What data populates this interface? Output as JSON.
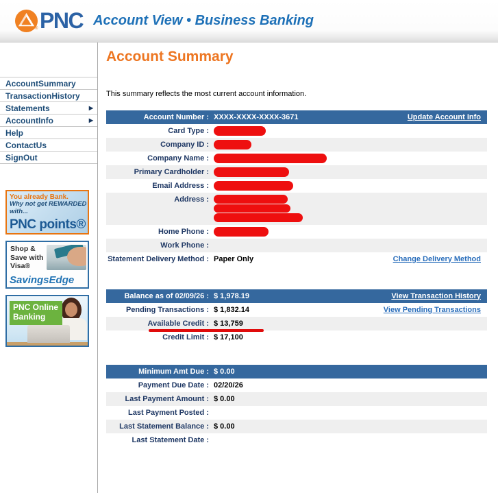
{
  "header": {
    "brand": "PNC",
    "brand_reg": "®",
    "app_title": "Account View • Business Banking"
  },
  "sidebar": {
    "nav": [
      {
        "label": "AccountSummary",
        "arrow": false
      },
      {
        "label": "TransactionHistory",
        "arrow": false
      },
      {
        "label": "Statements",
        "arrow": true
      },
      {
        "label": "AccountInfo",
        "arrow": true
      },
      {
        "label": "Help",
        "arrow": false
      },
      {
        "label": "ContactUs",
        "arrow": false
      },
      {
        "label": "SignOut",
        "arrow": false
      }
    ],
    "promos": [
      {
        "line1": "You already Bank.",
        "line2": "Why not get REWARDED",
        "line3": "with...",
        "title": "PNC points®"
      },
      {
        "line1": "Shop &",
        "line2": "Save with",
        "line3": "Visa®",
        "title": "SavingsEdge"
      },
      {
        "line1": "PNC Online",
        "line2": "Banking"
      }
    ]
  },
  "main": {
    "title": "Account Summary",
    "intro": "This summary reflects the most current account information.",
    "account_table": {
      "header_label": "Account Number :",
      "header_value": "XXXX-XXXX-XXXX-3671",
      "header_link": "Update Account Info",
      "rows": [
        {
          "label": "Card Type :",
          "redactions": [
            76
          ]
        },
        {
          "label": "Company ID :",
          "redactions": [
            55
          ]
        },
        {
          "label": "Company Name :",
          "redactions": [
            165
          ]
        },
        {
          "label": "Primary Cardholder :",
          "redactions": [
            110
          ]
        },
        {
          "label": "Email Address :",
          "redactions": [
            116
          ]
        },
        {
          "label": "Address :",
          "redactions": [
            108,
            112,
            130
          ]
        },
        {
          "label": "Home Phone :",
          "redactions": [
            80
          ]
        },
        {
          "label": "Work Phone :"
        },
        {
          "label": "Statement Delivery Method :",
          "value": "Paper Only",
          "link": "Change Delivery Method"
        }
      ]
    },
    "balance_table": {
      "header_label": "Balance as of 02/09/26 :",
      "header_value": "$ 1,978.19",
      "header_link": "View Transaction History",
      "rows": [
        {
          "label": "Pending Transactions :",
          "value": "$ 1,832.14",
          "link": "View Pending Transactions"
        },
        {
          "label": "Available Credit :",
          "value": "$ 13,759",
          "annotation": "red-underline"
        },
        {
          "label": "Credit Limit :",
          "value": "$ 17,100"
        }
      ]
    },
    "minimum_table": {
      "header_label": "Minimum Amt Due :",
      "header_value": "$ 0.00",
      "rows": [
        {
          "label": "Payment Due Date :",
          "value": "02/20/26"
        },
        {
          "label": "Last Payment Amount :",
          "value": "$ 0.00"
        },
        {
          "label": "Last Payment Posted :"
        },
        {
          "label": "Last Statement Balance :",
          "value": "$ 0.00"
        },
        {
          "label": "Last Statement Date :"
        }
      ]
    }
  },
  "colors": {
    "pnc_orange": "#e87511",
    "heading_orange": "#ed7622",
    "bar_blue": "#35689e",
    "nav_blue": "#1f4e79",
    "label_navy": "#1f3864",
    "link_blue": "#2a6ebb",
    "title_blue": "#1d70b7",
    "redaction_red": "#ee0f0f",
    "annotation_red": "#e00c0c",
    "row_stripe_gray": "#efefef",
    "promo_green": "#6cb33f"
  }
}
